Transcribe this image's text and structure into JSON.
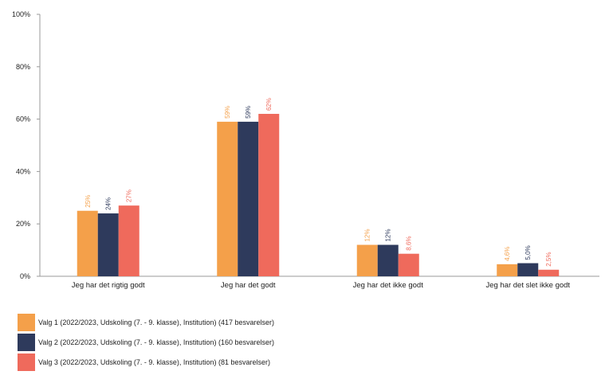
{
  "chart_data": {
    "type": "bar",
    "categories": [
      "Jeg har det rigtig godt",
      "Jeg har det godt",
      "Jeg har det ikke godt",
      "Jeg har det slet ikke godt"
    ],
    "series": [
      {
        "name": "Valg 1 (2022/2023, Udskoling (7. - 9. klasse), Institution) (417 besvarelser)",
        "color": "#f4a04a",
        "values": [
          25,
          59,
          12,
          4.6
        ],
        "labels": [
          "25%",
          "59%",
          "12%",
          "4,6%"
        ]
      },
      {
        "name": "Valg 2 (2022/2023, Udskoling (7. - 9. klasse), Institution) (160 besvarelser)",
        "color": "#2e3a5c",
        "values": [
          24,
          59,
          12,
          5
        ],
        "labels": [
          "24%",
          "59%",
          "12%",
          "5,0%"
        ]
      },
      {
        "name": "Valg 3 (2022/2023, Udskoling (7. - 9. klasse), Institution) (81 besvarelser)",
        "color": "#ef6a5c",
        "values": [
          27,
          62,
          8.6,
          2.5
        ],
        "labels": [
          "27%",
          "62%",
          "8,6%",
          "2,5%"
        ]
      }
    ],
    "yticks": [
      "0%",
      "20%",
      "40%",
      "60%",
      "80%",
      "100%"
    ],
    "ylim": [
      0,
      100
    ],
    "grid": false,
    "legend_position": "bottom-left"
  }
}
